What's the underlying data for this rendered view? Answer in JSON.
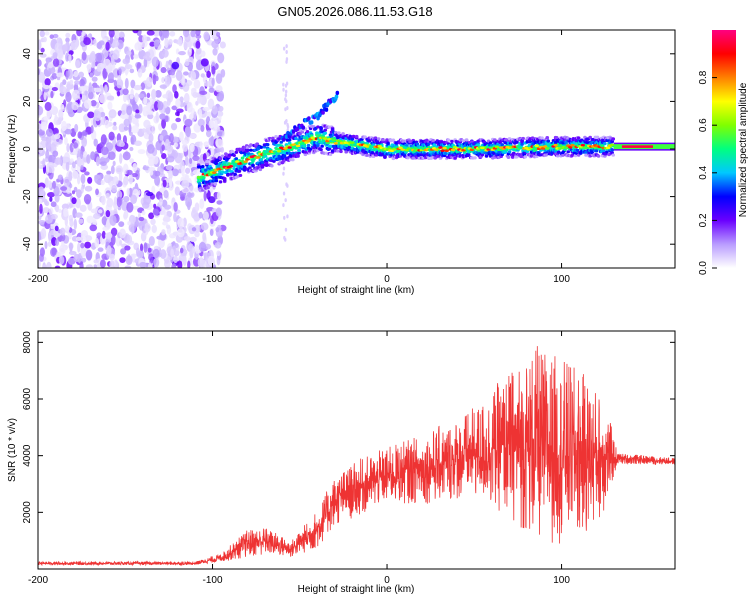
{
  "title": "GN05.2026.086.11.53.G18",
  "chart_data": [
    {
      "type": "heatmap",
      "name": "spectrogram",
      "xlabel": "Height of straight line (km)",
      "ylabel": "Frequency (Hz)",
      "xlim": [
        -200,
        165
      ],
      "ylim": [
        -50,
        50
      ],
      "xticks": [
        -200,
        -100,
        0,
        100
      ],
      "yticks": [
        -40,
        -20,
        0,
        20,
        40
      ],
      "colorbar": {
        "label": "Normalized spectral amplitude",
        "range": [
          0,
          1
        ],
        "ticks": [
          "0.0",
          "0.2",
          "0.4",
          "0.6",
          "0.8"
        ],
        "tick_values": [
          0,
          0.2,
          0.4,
          0.6,
          0.8
        ],
        "colormap": [
          "#ffffff",
          "#b99cff",
          "#6a00ff",
          "#0000ff",
          "#00c8ff",
          "#00ff80",
          "#80ff00",
          "#ffff00",
          "#ff8000",
          "#ff0000",
          "#ff0080"
        ]
      },
      "features": {
        "noise_region_x": [
          -200,
          -100
        ],
        "ridge": [
          {
            "x": -108,
            "y": -12
          },
          {
            "x": -90,
            "y": -7
          },
          {
            "x": -70,
            "y": -2
          },
          {
            "x": -50,
            "y": 2
          },
          {
            "x": -40,
            "y": 5
          },
          {
            "x": -30,
            "y": 3
          },
          {
            "x": 0,
            "y": 0
          },
          {
            "x": 50,
            "y": 0
          },
          {
            "x": 100,
            "y": 1
          },
          {
            "x": 130,
            "y": 1
          },
          {
            "x": 150,
            "y": 1
          },
          {
            "x": 165,
            "y": 3
          }
        ],
        "branch": [
          {
            "x": -60,
            "y": 5
          },
          {
            "x": -40,
            "y": 14
          },
          {
            "x": -28,
            "y": 23
          }
        ]
      }
    },
    {
      "type": "line",
      "name": "snr",
      "xlabel": "Height of straight line (km)",
      "ylabel": "SNR (10 * v/v)",
      "xlim": [
        -200,
        165
      ],
      "ylim": [
        0,
        8400
      ],
      "xticks": [
        -200,
        -100,
        0,
        100
      ],
      "yticks": [
        2000,
        4000,
        6000,
        8000
      ],
      "color": "#ee3333",
      "envelope": [
        {
          "x": -200,
          "mean": 200,
          "amp": 60
        },
        {
          "x": -110,
          "mean": 200,
          "amp": 60
        },
        {
          "x": -95,
          "mean": 400,
          "amp": 150
        },
        {
          "x": -80,
          "mean": 900,
          "amp": 500
        },
        {
          "x": -70,
          "mean": 1000,
          "amp": 500
        },
        {
          "x": -55,
          "mean": 700,
          "amp": 300
        },
        {
          "x": -40,
          "mean": 1400,
          "amp": 700
        },
        {
          "x": -30,
          "mean": 2400,
          "amp": 900
        },
        {
          "x": -15,
          "mean": 2900,
          "amp": 1000
        },
        {
          "x": 0,
          "mean": 3300,
          "amp": 1000
        },
        {
          "x": 25,
          "mean": 3600,
          "amp": 1300
        },
        {
          "x": 50,
          "mean": 4100,
          "amp": 1600
        },
        {
          "x": 70,
          "mean": 4400,
          "amp": 2600
        },
        {
          "x": 85,
          "mean": 4400,
          "amp": 3500
        },
        {
          "x": 100,
          "mean": 4200,
          "amp": 3300
        },
        {
          "x": 115,
          "mean": 4000,
          "amp": 2800
        },
        {
          "x": 125,
          "mean": 4000,
          "amp": 2000
        },
        {
          "x": 132,
          "mean": 3900,
          "amp": 200
        },
        {
          "x": 165,
          "mean": 3800,
          "amp": 120
        }
      ]
    }
  ]
}
